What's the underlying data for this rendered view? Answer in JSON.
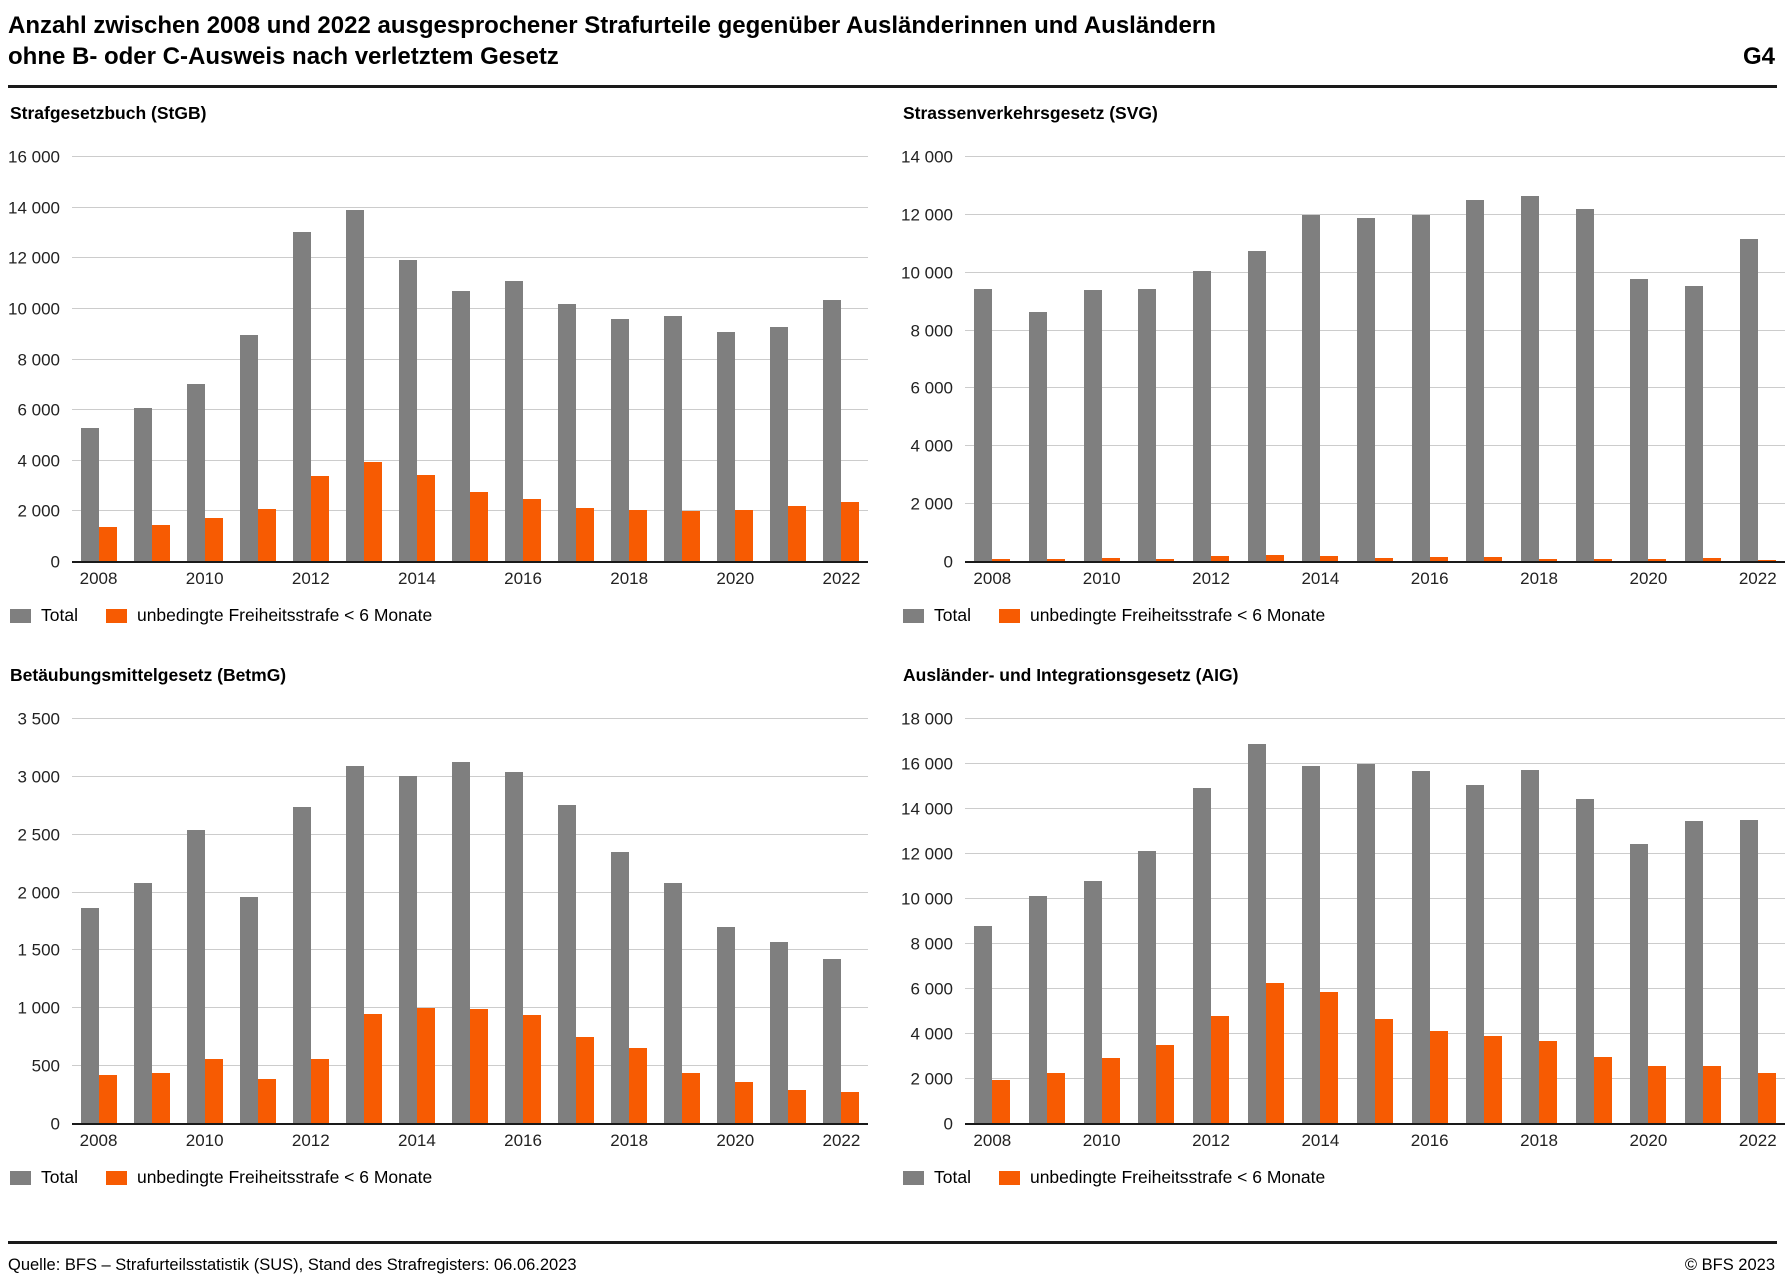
{
  "header": {
    "title_line1": "Anzahl zwischen 2008 und 2022 ausgesprochener Strafurteile gegenüber Ausländerinnen und Ausländern",
    "title_line2": "ohne B- oder C-Ausweis nach verletztem Gesetz",
    "figure_code": "G4"
  },
  "legend": {
    "total_label": "Total",
    "short_sentence_label": "unbedingte Freiheitsstrafe < 6 Monate"
  },
  "colors": {
    "total": "#7F7F7F",
    "orange": "#F75B02",
    "gridline": "#CCCCCC",
    "axis": "#1A1A1A"
  },
  "x_axis": {
    "tick_years": [
      2008,
      2010,
      2012,
      2014,
      2016,
      2018,
      2020,
      2022
    ]
  },
  "chart_data": [
    {
      "id": "stgb",
      "type": "bar",
      "title": "Strafgesetzbuch (StGB)",
      "ylim": [
        0,
        16000
      ],
      "ytick_step": 2000,
      "grid": true,
      "legend_position": "bottom",
      "categories": [
        2008,
        2009,
        2010,
        2011,
        2012,
        2013,
        2014,
        2015,
        2016,
        2017,
        2018,
        2019,
        2020,
        2021,
        2022
      ],
      "series": [
        {
          "name": "Total",
          "color_key": "total",
          "values": [
            5300,
            6100,
            7050,
            8950,
            13050,
            13900,
            11950,
            10700,
            11100,
            10200,
            9600,
            9700,
            9100,
            9300,
            10350
          ]
        },
        {
          "name": "unbedingte Freiheitsstrafe < 6 Monate",
          "color_key": "orange",
          "values": [
            1400,
            1450,
            1750,
            2100,
            3400,
            3950,
            3450,
            2750,
            2500,
            2150,
            2050,
            2000,
            2050,
            2200,
            2370
          ]
        }
      ]
    },
    {
      "id": "svg",
      "type": "bar",
      "title": "Strassenverkehrsgesetz (SVG)",
      "ylim": [
        0,
        14000
      ],
      "ytick_step": 2000,
      "grid": true,
      "legend_position": "bottom",
      "categories": [
        2008,
        2009,
        2010,
        2011,
        2012,
        2013,
        2014,
        2015,
        2016,
        2017,
        2018,
        2019,
        2020,
        2021,
        2022
      ],
      "series": [
        {
          "name": "Total",
          "color_key": "total",
          "values": [
            9450,
            8650,
            9400,
            9450,
            10050,
            10750,
            12000,
            11900,
            12000,
            12500,
            12650,
            12200,
            9800,
            9550,
            11150
          ]
        },
        {
          "name": "unbedingte Freiheitsstrafe < 6 Monate",
          "color_key": "orange",
          "values": [
            90,
            110,
            130,
            110,
            200,
            250,
            200,
            140,
            170,
            170,
            120,
            90,
            110,
            130,
            70
          ]
        }
      ]
    },
    {
      "id": "betmg",
      "type": "bar",
      "title": "Betäubungsmittelgesetz (BetmG)",
      "ylim": [
        0,
        3500
      ],
      "ytick_step": 500,
      "grid": true,
      "legend_position": "bottom",
      "categories": [
        2008,
        2009,
        2010,
        2011,
        2012,
        2013,
        2014,
        2015,
        2016,
        2017,
        2018,
        2019,
        2020,
        2021,
        2022
      ],
      "series": [
        {
          "name": "Total",
          "color_key": "total",
          "values": [
            1870,
            2080,
            2540,
            1960,
            2740,
            3090,
            3010,
            3130,
            3040,
            2760,
            2350,
            2080,
            1700,
            1570,
            1430
          ]
        },
        {
          "name": "unbedingte Freiheitsstrafe < 6 Monate",
          "color_key": "orange",
          "values": [
            420,
            440,
            560,
            390,
            560,
            950,
            1000,
            990,
            940,
            750,
            660,
            440,
            360,
            295,
            280
          ]
        }
      ]
    },
    {
      "id": "aig",
      "type": "bar",
      "title": "Ausländer- und Integrationsgesetz (AIG)",
      "ylim": [
        0,
        18000
      ],
      "ytick_step": 2000,
      "grid": true,
      "legend_position": "bottom",
      "categories": [
        2008,
        2009,
        2010,
        2011,
        2012,
        2013,
        2014,
        2015,
        2016,
        2017,
        2018,
        2019,
        2020,
        2021,
        2022
      ],
      "series": [
        {
          "name": "Total",
          "color_key": "total",
          "values": [
            8800,
            10150,
            10800,
            12150,
            14950,
            16900,
            15900,
            16000,
            15700,
            15050,
            15750,
            14450,
            12450,
            13450,
            13500
          ]
        },
        {
          "name": "unbedingte Freiheitsstrafe < 6 Monate",
          "color_key": "orange",
          "values": [
            1950,
            2250,
            2950,
            3500,
            4800,
            6250,
            5850,
            4650,
            4150,
            3900,
            3700,
            3000,
            2600,
            2600,
            2250
          ]
        }
      ]
    }
  ],
  "footer": {
    "source": "Quelle: BFS – Strafurteilsstatistik (SUS), Stand des Strafregisters: 06.06.2023",
    "copyright": "© BFS 2023"
  }
}
